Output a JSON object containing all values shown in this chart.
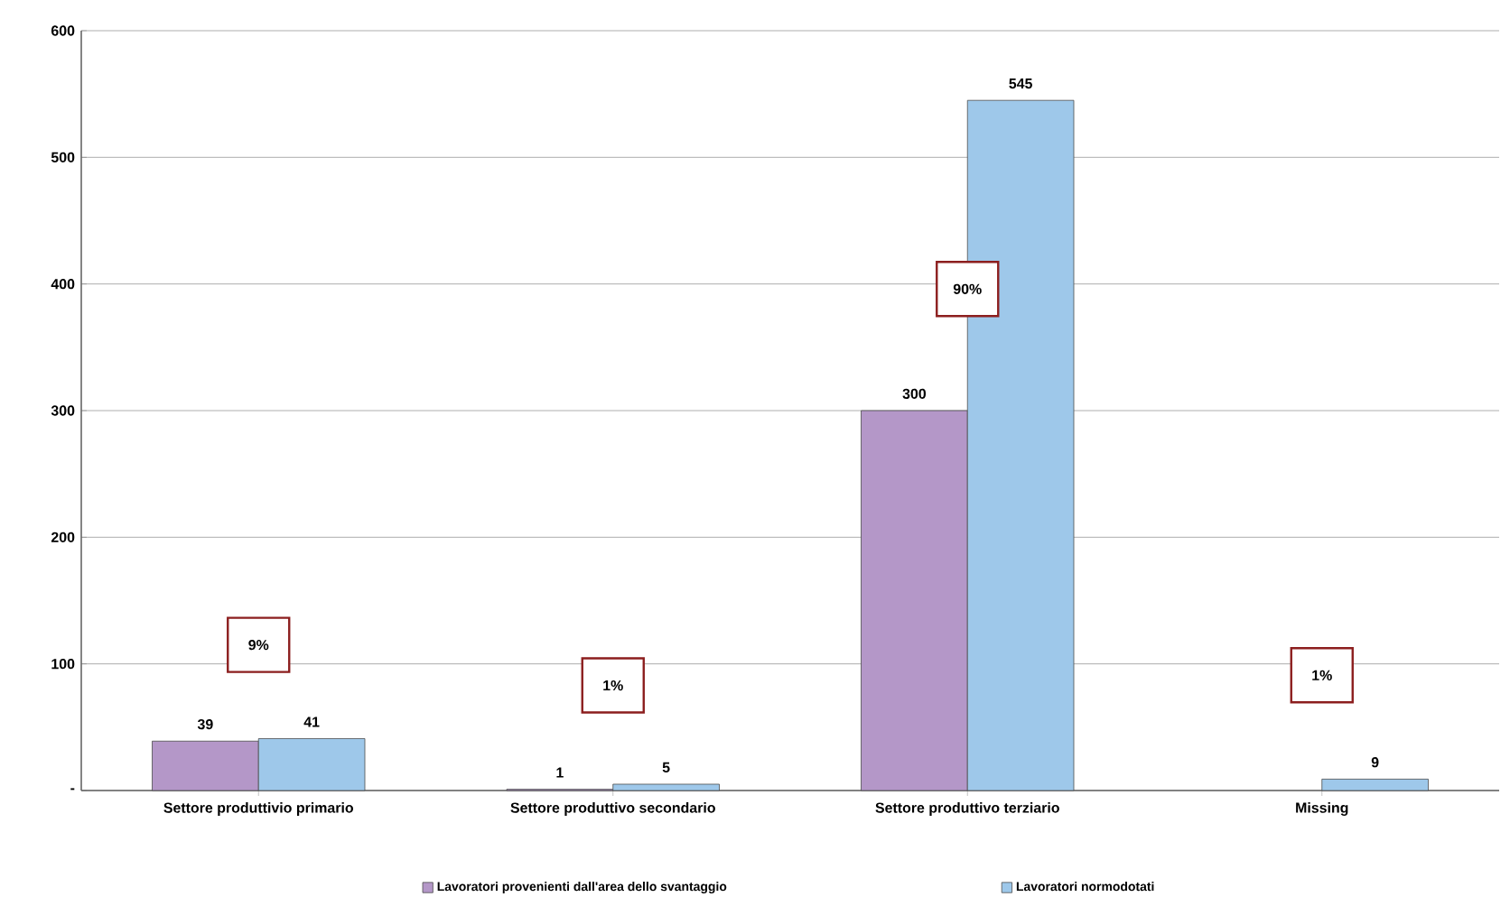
{
  "chart_data": {
    "type": "bar",
    "categories": [
      "Settore produttivio primario",
      "Settore produttivo secondario",
      "Settore produttivo terziario",
      "Missing"
    ],
    "series": [
      {
        "name": "Lavoratori provenienti dall'area dello svantaggio",
        "color": "#b497c8",
        "values": [
          39,
          1,
          300,
          null
        ]
      },
      {
        "name": "Lavoratori normodotati",
        "color": "#9ec8ea",
        "values": [
          41,
          5,
          545,
          9
        ]
      }
    ],
    "ylim": [
      0,
      600
    ],
    "yticks": [
      {
        "value": 0,
        "label": "-"
      },
      100,
      200,
      300,
      400,
      500,
      600
    ],
    "grid": "y",
    "legend": "bottom",
    "data_labels": true,
    "annotations": [
      {
        "text": "9%",
        "x": "Settore produttivio primario",
        "y": 115
      },
      {
        "text": "1%",
        "x": "Settore produttivo secondario",
        "y": 83
      },
      {
        "text": "90%",
        "x": "Settore produttivo terziario",
        "y": 396
      },
      {
        "text": "1%",
        "x": "Missing",
        "y": 91
      }
    ]
  }
}
